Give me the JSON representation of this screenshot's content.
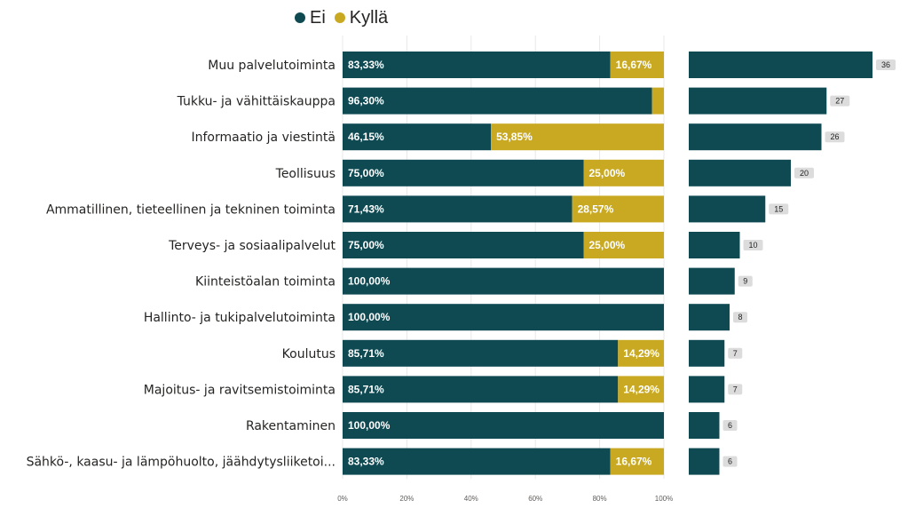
{
  "colors": {
    "ei": "#0f4a53",
    "kylla": "#c9a922",
    "grid": "#e8e8e8",
    "badge": "#dcdcdc"
  },
  "chart_data": [
    {
      "type": "bar",
      "orientation": "horizontal",
      "stacked": "100%",
      "legend_position": "top",
      "categories": [
        "Muu palvelutoiminta",
        "Tukku- ja vähittäiskauppa",
        "Informaatio ja viestintä",
        "Teollisuus",
        "Ammatillinen, tieteellinen ja tekninen toiminta",
        "Terveys- ja sosiaalipalvelut",
        "Kiinteistöalan toiminta",
        "Hallinto- ja tukipalvelutoiminta",
        "Koulutus",
        "Majoitus- ja ravitsemistoiminta",
        "Rakentaminen",
        "Sähkö-, kaasu- ja lämpöhuolto, jäähdytysliiketoi..."
      ],
      "series": [
        {
          "name": "Ei",
          "values": [
            83.33,
            96.3,
            46.15,
            75.0,
            71.43,
            75.0,
            100.0,
            100.0,
            85.71,
            85.71,
            100.0,
            83.33
          ],
          "labels": [
            "83,33%",
            "96,30%",
            "46,15%",
            "75,00%",
            "71,43%",
            "75,00%",
            "100,00%",
            "100,00%",
            "85,71%",
            "85,71%",
            "100,00%",
            "83,33%"
          ]
        },
        {
          "name": "Kyllä",
          "values": [
            16.67,
            3.7,
            53.85,
            25.0,
            28.57,
            25.0,
            0,
            0,
            14.29,
            14.29,
            0,
            16.67
          ],
          "labels": [
            "16,67%",
            "",
            "53,85%",
            "25,00%",
            "28,57%",
            "25,00%",
            "",
            "",
            "14,29%",
            "14,29%",
            "",
            "16,67%"
          ]
        }
      ],
      "xlim": [
        0,
        100
      ],
      "x_ticks": [
        0,
        20,
        40,
        60,
        80,
        100
      ],
      "x_tick_labels": [
        "0%",
        "20%",
        "40%",
        "60%",
        "80%",
        "100%"
      ],
      "grid": true
    },
    {
      "type": "bar",
      "orientation": "horizontal",
      "categories": [
        "Muu palvelutoiminta",
        "Tukku- ja vähittäiskauppa",
        "Informaatio ja viestintä",
        "Teollisuus",
        "Ammatillinen, tieteellinen ja tekninen toiminta",
        "Terveys- ja sosiaalipalvelut",
        "Kiinteistöalan toiminta",
        "Hallinto- ja tukipalvelutoiminta",
        "Koulutus",
        "Majoitus- ja ravitsemistoiminta",
        "Rakentaminen",
        "Sähkö-, kaasu- ja lämpöhuolto, jäähdytysliiketoi..."
      ],
      "values": [
        36,
        27,
        26,
        20,
        15,
        10,
        9,
        8,
        7,
        7,
        6,
        6
      ],
      "value_labels": [
        "36",
        "27",
        "26",
        "20",
        "15",
        "10",
        "9",
        "8",
        "7",
        "7",
        "6",
        "6"
      ],
      "xlim": [
        0,
        36
      ],
      "grid": false
    }
  ]
}
